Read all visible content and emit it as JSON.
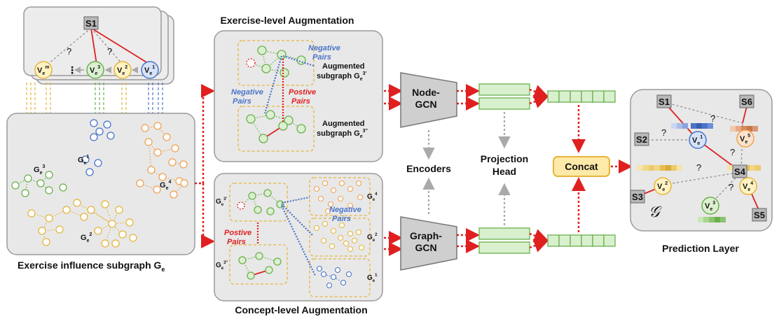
{
  "colors": {
    "blue": "#4a74c9",
    "green": "#6ab04c",
    "yellow": "#f2c94c",
    "orange": "#f0a050",
    "red": "#e02020",
    "panel": "#e8e8e8",
    "dash": "#e6b43c",
    "node_gray": "#9a9a9a",
    "encoder": "#cfcfcf",
    "proj_fill": "#d9f0cf",
    "concat": "#fde9a8"
  },
  "left": {
    "caption": "Exercise influence subgraph G",
    "caption_sub": "e",
    "top_student": "S1",
    "top_nodes": [
      {
        "base": "V",
        "sub": "e",
        "sup": "m"
      },
      {
        "base": "V",
        "sub": "e",
        "sup": "3"
      },
      {
        "base": "V",
        "sub": "e",
        "sup": "2"
      },
      {
        "base": "V",
        "sub": "e",
        "sup": "1"
      }
    ],
    "question_mark": "?",
    "ellipsis": "⋮",
    "sub_g3": "G",
    "sub_g3_sup": "3",
    "sub_g1": "G",
    "sub_g1_sup": "1",
    "sub_g4": "G",
    "sub_g4_sup": "4",
    "sub_g2": "G",
    "sub_g2_sup": "2",
    "sub_e": "e"
  },
  "exercise_aug": {
    "title": "Exercise-level Augmentation",
    "negative_pairs_1": "Negative",
    "negative_pairs_2": "Pairs",
    "negative_pairs_left_1": "Negative",
    "negative_pairs_left_2": "Pairs",
    "positive_pairs_1": "Postive",
    "positive_pairs_2": "Pairs",
    "aug1_line1": "Augmented",
    "aug1_line2": "subgraph G",
    "aug1_sup": "3'",
    "aug2_line1": "Augmented",
    "aug2_line2": "subgraph G",
    "aug2_sup": "3''",
    "sub_e": "e"
  },
  "concept_aug": {
    "title": "Concept-level Augmentation",
    "negative_pairs_1": "Negative",
    "negative_pairs_2": "Pairs",
    "positive_pairs_1": "Postive",
    "positive_pairs_2": "Pairs",
    "g_top": "G",
    "g_top_sup": "3'",
    "g_bottom": "G",
    "g_bottom_sup": "3''",
    "g4": "G",
    "g4_sup": "4",
    "g2": "G",
    "g2_sup": "2",
    "g1": "G",
    "g1_sup": "1",
    "sub_e": "e"
  },
  "middle": {
    "node_gcn_1": "Node-",
    "node_gcn_2": "GCN",
    "graph_gcn_1": "Graph-",
    "graph_gcn_2": "GCN",
    "encoders": "Encoders",
    "projection_1": "Projection",
    "projection_2": "Head",
    "concat": "Concat"
  },
  "prediction": {
    "caption": "Prediction Layer",
    "students": [
      "S1",
      "S6",
      "S2",
      "S4",
      "S3",
      "S5"
    ],
    "exercises": [
      {
        "base": "V",
        "sub": "e",
        "sup": "1"
      },
      {
        "base": "V",
        "sub": "e",
        "sup": "5"
      },
      {
        "base": "V",
        "sub": "e",
        "sup": "2"
      },
      {
        "base": "V",
        "sub": "e",
        "sup": "4"
      },
      {
        "base": "V",
        "sub": "e",
        "sup": "3"
      }
    ],
    "graph_symbol": "𝒢",
    "question_mark": "?"
  }
}
